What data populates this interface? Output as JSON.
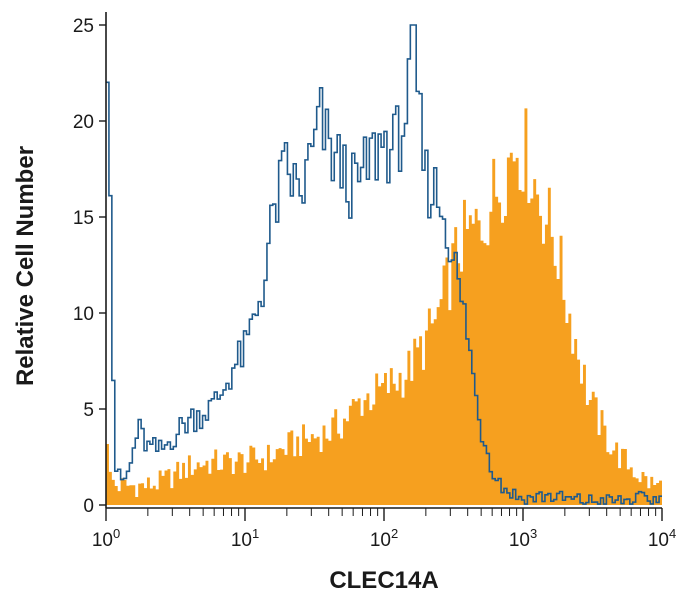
{
  "chart_data": {
    "type": "area",
    "title": "",
    "xlabel": "CLEC14A",
    "ylabel": "Relative Cell Number",
    "x_scale": "log",
    "xlim": [
      1,
      10000
    ],
    "ylim": [
      0,
      25
    ],
    "legend": "none",
    "grid": false,
    "x_ticks": [
      {
        "value": 1,
        "base": "10",
        "exp": "0"
      },
      {
        "value": 10,
        "base": "10",
        "exp": "1"
      },
      {
        "value": 100,
        "base": "10",
        "exp": "2"
      },
      {
        "value": 1000,
        "base": "10",
        "exp": "3"
      },
      {
        "value": 10000,
        "base": "10",
        "exp": "4"
      }
    ],
    "y_ticks": [
      {
        "value": 0,
        "label": "0"
      },
      {
        "value": 5,
        "label": "5"
      },
      {
        "value": 10,
        "label": "10"
      },
      {
        "value": 15,
        "label": "15"
      },
      {
        "value": 20,
        "label": "20"
      },
      {
        "value": 25,
        "label": "25"
      }
    ],
    "series": [
      {
        "style": "filled",
        "color": "#f6a01f",
        "points": [
          [
            1.0,
            6.0
          ],
          [
            1.05,
            1.5
          ],
          [
            1.2,
            1.0
          ],
          [
            1.5,
            1.0
          ],
          [
            2.0,
            1.0
          ],
          [
            2.5,
            1.2
          ],
          [
            3.0,
            1.5
          ],
          [
            4.0,
            2.0
          ],
          [
            5.0,
            2.2
          ],
          [
            7.0,
            2.2
          ],
          [
            10.0,
            2.3
          ],
          [
            15.0,
            2.5
          ],
          [
            20.0,
            3.0
          ],
          [
            30.0,
            3.5
          ],
          [
            40.0,
            3.8
          ],
          [
            50.0,
            4.3
          ],
          [
            70.0,
            5.5
          ],
          [
            100.0,
            6.0
          ],
          [
            150.0,
            7.0
          ],
          [
            200.0,
            8.5
          ],
          [
            250.0,
            10.0
          ],
          [
            300.0,
            12.0
          ],
          [
            350.0,
            13.5
          ],
          [
            400.0,
            14.0
          ],
          [
            500.0,
            14.5
          ],
          [
            600.0,
            16.0
          ],
          [
            700.0,
            17.0
          ],
          [
            800.0,
            18.0
          ],
          [
            900.0,
            19.0
          ],
          [
            1000.0,
            18.5
          ],
          [
            1100.0,
            18.0
          ],
          [
            1300.0,
            16.0
          ],
          [
            1500.0,
            15.0
          ],
          [
            1800.0,
            13.0
          ],
          [
            2000.0,
            11.0
          ],
          [
            2500.0,
            8.0
          ],
          [
            3000.0,
            5.5
          ],
          [
            4000.0,
            3.5
          ],
          [
            5000.0,
            2.5
          ],
          [
            6000.0,
            2.0
          ],
          [
            7000.0,
            1.5
          ],
          [
            8000.0,
            1.2
          ],
          [
            9000.0,
            1.0
          ],
          [
            10000.0,
            1.0
          ]
        ]
      },
      {
        "style": "outline",
        "color": "#1f5a8c",
        "points": [
          [
            1.0,
            25.0
          ],
          [
            1.05,
            24.0
          ],
          [
            1.1,
            12.0
          ],
          [
            1.15,
            3.0
          ],
          [
            1.2,
            1.5
          ],
          [
            1.35,
            1.2
          ],
          [
            1.5,
            2.0
          ],
          [
            1.7,
            4.0
          ],
          [
            2.0,
            3.0
          ],
          [
            2.5,
            2.8
          ],
          [
            3.0,
            3.5
          ],
          [
            4.0,
            4.5
          ],
          [
            5.0,
            4.8
          ],
          [
            6.0,
            5.2
          ],
          [
            7.0,
            6.0
          ],
          [
            8.0,
            7.0
          ],
          [
            10.0,
            8.0
          ],
          [
            12.0,
            10.0
          ],
          [
            14.0,
            12.0
          ],
          [
            16.0,
            15.0
          ],
          [
            18.0,
            16.5
          ],
          [
            20.0,
            17.5
          ],
          [
            25.0,
            16.0
          ],
          [
            30.0,
            18.0
          ],
          [
            35.0,
            20.0
          ],
          [
            40.0,
            18.5
          ],
          [
            50.0,
            17.5
          ],
          [
            60.0,
            16.5
          ],
          [
            70.0,
            17.0
          ],
          [
            80.0,
            18.0
          ],
          [
            90.0,
            18.5
          ],
          [
            100.0,
            19.0
          ],
          [
            120.0,
            18.5
          ],
          [
            150.0,
            21.0
          ],
          [
            160.0,
            25.0
          ],
          [
            180.0,
            20.0
          ],
          [
            200.0,
            17.0
          ],
          [
            250.0,
            16.0
          ],
          [
            300.0,
            14.0
          ],
          [
            350.0,
            11.0
          ],
          [
            400.0,
            9.0
          ],
          [
            450.0,
            6.0
          ],
          [
            500.0,
            4.0
          ],
          [
            550.0,
            3.0
          ],
          [
            600.0,
            2.0
          ],
          [
            700.0,
            1.0
          ],
          [
            800.0,
            0.7
          ],
          [
            1000.0,
            0.3
          ],
          [
            1500.0,
            0.5
          ],
          [
            2000.0,
            0.3
          ],
          [
            3000.0,
            0.2
          ],
          [
            5000.0,
            0.2
          ],
          [
            7000.0,
            0.3
          ],
          [
            10000.0,
            0.3
          ]
        ]
      }
    ]
  }
}
